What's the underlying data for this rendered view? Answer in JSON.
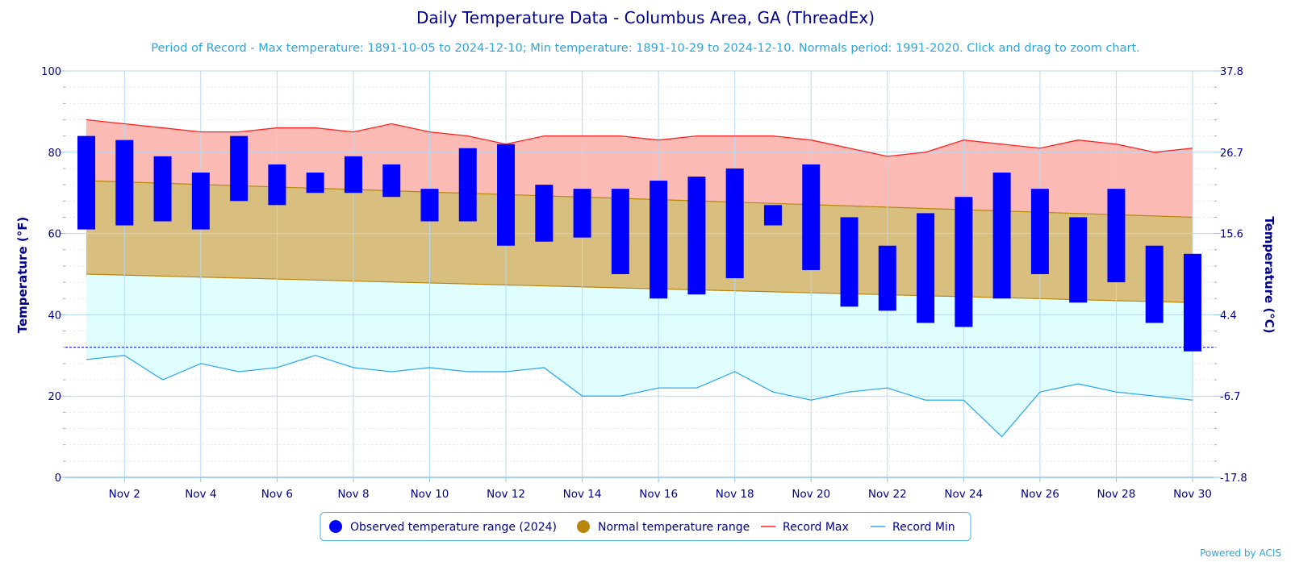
{
  "chart_data": {
    "type": "bar",
    "title": "Daily Temperature Data - Columbus Area, GA (ThreadEx)",
    "subtitle": "Period of Record - Max temperature: 1891-10-05 to 2024-12-10; Min temperature: 1891-10-29 to 2024-12-10. Normals period: 1991-2020. Click and drag to zoom chart.",
    "ylabel": "Temperature (°F)",
    "ylabel_right": "Temperature (°C)",
    "ylim": [
      0,
      100
    ],
    "y_ticks": [
      "0",
      "20",
      "40",
      "60",
      "80",
      "100"
    ],
    "y_ticks_right": [
      "-17.8",
      "-6.7",
      "4.4",
      "15.6",
      "26.7",
      "37.8"
    ],
    "x_tick_labels": [
      "Nov 2",
      "Nov 4",
      "Nov 6",
      "Nov 8",
      "Nov 10",
      "Nov 12",
      "Nov 14",
      "Nov 16",
      "Nov 18",
      "Nov 20",
      "Nov 22",
      "Nov 24",
      "Nov 26",
      "Nov 28",
      "Nov 30"
    ],
    "x_days": [
      1,
      30
    ],
    "freezing_line": 32,
    "grid": true,
    "legend_position": "bottom-center",
    "series": [
      {
        "name": "Observed temperature range (2024)",
        "kind": "range_bar",
        "color": "#0000ff",
        "days": [
          1,
          2,
          3,
          4,
          5,
          6,
          7,
          8,
          9,
          10,
          11,
          12,
          13,
          14,
          15,
          16,
          17,
          18,
          19,
          20,
          21,
          22,
          23,
          24,
          25,
          26,
          27,
          28,
          29,
          30
        ],
        "highs": [
          84,
          83,
          79,
          75,
          84,
          77,
          75,
          79,
          77,
          71,
          81,
          82,
          72,
          71,
          71,
          73,
          74,
          76,
          67,
          77,
          64,
          57,
          65,
          69,
          75,
          71,
          64,
          71,
          57,
          55
        ],
        "lows": [
          61,
          62,
          63,
          61,
          68,
          67,
          70,
          70,
          69,
          63,
          63,
          57,
          58,
          59,
          50,
          44,
          45,
          49,
          62,
          51,
          42,
          41,
          38,
          37,
          44,
          50,
          43,
          48,
          38,
          31
        ]
      },
      {
        "name": "Normal temperature range",
        "kind": "range_area",
        "color": "#b8860b",
        "fill": "#d8bf7f",
        "days": [
          1,
          30
        ],
        "highs": [
          73,
          64
        ],
        "lows": [
          50,
          43
        ]
      },
      {
        "name": "Record Max",
        "kind": "line",
        "color": "#ff2222",
        "fill": "#fbbbb4",
        "days": [
          1,
          2,
          3,
          4,
          5,
          6,
          7,
          8,
          9,
          10,
          11,
          12,
          13,
          14,
          15,
          16,
          17,
          18,
          19,
          20,
          21,
          22,
          23,
          24,
          25,
          26,
          27,
          28,
          29,
          30
        ],
        "values": [
          88,
          87,
          86,
          85,
          85,
          86,
          86,
          85,
          87,
          85,
          84,
          82,
          84,
          84,
          84,
          83,
          84,
          84,
          84,
          83,
          81,
          79,
          80,
          83,
          82,
          81,
          83,
          82,
          80,
          81
        ]
      },
      {
        "name": "Record Min",
        "kind": "line",
        "color": "#33aaee",
        "fill": "#e0fefe",
        "days": [
          1,
          2,
          3,
          4,
          5,
          6,
          7,
          8,
          9,
          10,
          11,
          12,
          13,
          14,
          15,
          16,
          17,
          18,
          19,
          20,
          21,
          22,
          23,
          24,
          25,
          26,
          27,
          28,
          29,
          30
        ],
        "values": [
          29,
          30,
          24,
          28,
          26,
          27,
          30,
          27,
          26,
          27,
          26,
          26,
          27,
          20,
          20,
          22,
          22,
          26,
          21,
          19,
          21,
          22,
          19,
          19,
          10,
          21,
          23,
          21,
          20,
          19
        ]
      }
    ]
  },
  "credit": "Powered by ACIS",
  "colors": {
    "title": "#00008b",
    "subtitle": "#2fa4d8",
    "axis_text": "#00008b",
    "gridline": "#b7d9f3",
    "axis_line": "#88c3ec",
    "legend_border": "#4fb3e8"
  }
}
